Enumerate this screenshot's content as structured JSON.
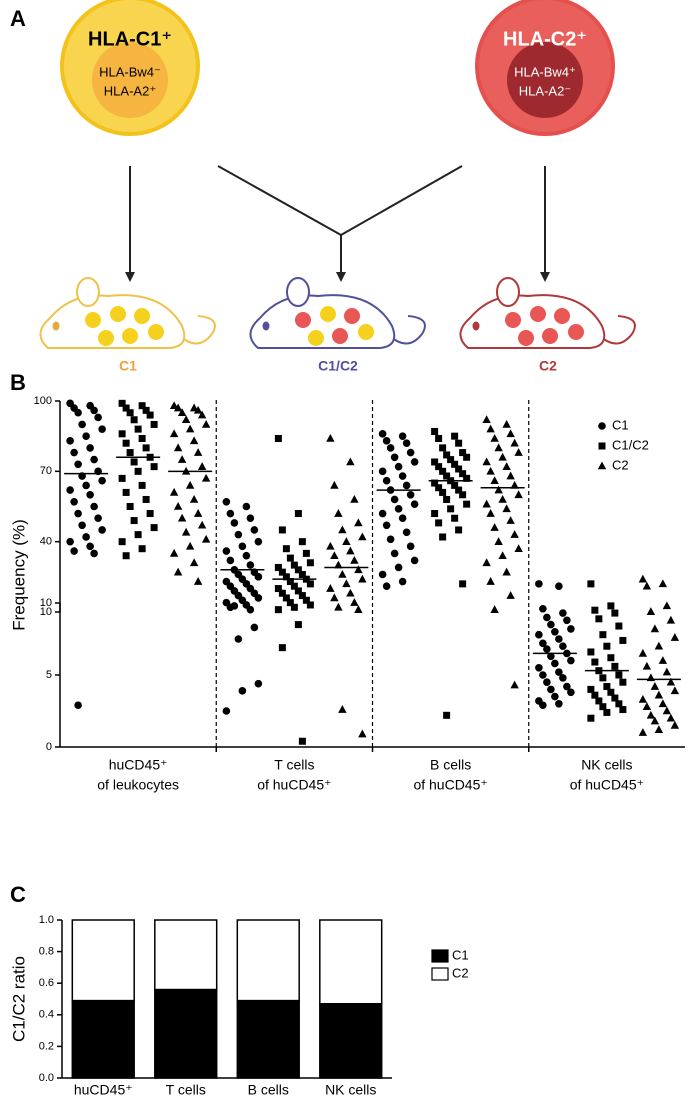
{
  "panel_a": {
    "label": "A",
    "donors": [
      {
        "title": "HLA-C1⁺",
        "lines": [
          "HLA-Bw4⁻",
          "HLA-A2⁺"
        ]
      },
      {
        "title": "HLA-C2⁺",
        "lines": [
          "HLA-Bw4⁺",
          "HLA-A2⁻"
        ]
      }
    ],
    "mice": [
      "C1",
      "C1/C2",
      "C2"
    ]
  },
  "chart_data": [
    {
      "type": "strip",
      "panel_label": "B",
      "ylabel": "Frequency (%)",
      "categories": [
        [
          "huCD45⁺",
          "of leukocytes"
        ],
        [
          "T cells",
          "of huCD45⁺"
        ],
        [
          "B cells",
          "of huCD45⁺"
        ],
        [
          "NK cells",
          "of huCD45⁺"
        ]
      ],
      "axis_segments": [
        {
          "ylim": [
            0,
            10
          ],
          "yticks": [
            0,
            5,
            10
          ]
        },
        {
          "ylim": [
            10,
            100
          ],
          "yticks": [
            10,
            40,
            70,
            100
          ]
        }
      ],
      "legend": "top-right",
      "series": [
        {
          "name": "C1",
          "marker": "circle",
          "color": "#000000",
          "values": [
            [
              99,
              98,
              97,
              96,
              95,
              93,
              90,
              88,
              85,
              83,
              80,
              78,
              75,
              73,
              70,
              68,
              66,
              64,
              62,
              60,
              57,
              55,
              52,
              50,
              47,
              45,
              42,
              40,
              38,
              36,
              35,
              2.9
            ],
            [
              57,
              55,
              52,
              50,
              48,
              45,
              43,
              40,
              38,
              36,
              34,
              32,
              30,
              28,
              27,
              26,
              25,
              24,
              23,
              22,
              21,
              20,
              19,
              18,
              17,
              16,
              15,
              14,
              13,
              12,
              11,
              9.8,
              8.3,
              7.5,
              4.4,
              3.9,
              2.5
            ],
            [
              86,
              85,
              83,
              82,
              80,
              78,
              76,
              74,
              72,
              70,
              68,
              66,
              64,
              62,
              60,
              58,
              56,
              54,
              52,
              50,
              47,
              44,
              41,
              38,
              35,
              32,
              29,
              26,
              23,
              21
            ],
            [
              22,
              21,
              9.6,
              9.3,
              9.0,
              8.8,
              8.5,
              8.2,
              8.0,
              7.8,
              7.5,
              7.2,
              7.0,
              6.8,
              6.5,
              6.3,
              6.0,
              5.8,
              5.5,
              5.2,
              5.0,
              4.8,
              4.5,
              4.2,
              4.0,
              3.8,
              3.5,
              3.2,
              3.0,
              2.9
            ]
          ],
          "means": [
            69,
            28,
            62,
            6.5
          ]
        },
        {
          "name": "C1/C2",
          "marker": "square",
          "color": "#000000",
          "values": [
            [
              99,
              98,
              97,
              96,
              95,
              94,
              92,
              90,
              88,
              86,
              84,
              82,
              80,
              78,
              76,
              74,
              72,
              70,
              67,
              64,
              61,
              58,
              55,
              52,
              49,
              46,
              43,
              40,
              37,
              34
            ],
            [
              84,
              52,
              45,
              40,
              37,
              35,
              33,
              31,
              30,
              29,
              28,
              27,
              26,
              25,
              24,
              23,
              22,
              21,
              20,
              19,
              18,
              17,
              16,
              15,
              14,
              13,
              12,
              11,
              8.5,
              6.9,
              0.4
            ],
            [
              87,
              85,
              84,
              82,
              80,
              78,
              77,
              76,
              75,
              74,
              73,
              72,
              71,
              70,
              69,
              68,
              67,
              66,
              65,
              64,
              63,
              62,
              61,
              60,
              58,
              56,
              54,
              52,
              50,
              48,
              45,
              42,
              22,
              2.2
            ],
            [
              22,
              9.8,
              9.5,
              9.3,
              8.9,
              8.4,
              7.8,
              7.4,
              7.0,
              6.6,
              6.2,
              5.9,
              5.6,
              5.3,
              5.0,
              4.8,
              4.5,
              4.2,
              4.0,
              3.8,
              3.6,
              3.4,
              3.2,
              3.0,
              2.8,
              2.6,
              2.4,
              2.0
            ]
          ],
          "means": [
            76,
            24,
            66,
            5.3
          ]
        },
        {
          "name": "C2",
          "marker": "triangle",
          "color": "#000000",
          "values": [
            [
              98,
              97,
              97,
              96,
              95,
              94,
              92,
              90,
              88,
              86,
              83,
              80,
              78,
              75,
              72,
              70,
              67,
              64,
              61,
              58,
              55,
              52,
              50,
              47,
              44,
              41,
              38,
              35,
              31,
              27,
              23
            ],
            [
              84,
              74,
              64,
              58,
              52,
              48,
              45,
              42,
              40,
              38,
              36,
              34,
              32,
              30,
              28,
              26,
              24,
              22,
              20,
              18,
              16,
              14,
              12,
              11,
              2.6,
              0.9
            ],
            [
              92,
              90,
              88,
              86,
              84,
              82,
              80,
              78,
              76,
              74,
              72,
              70,
              68,
              66,
              64,
              62,
              60,
              58,
              56,
              54,
              52,
              49,
              46,
              43,
              40,
              37,
              34,
              31,
              27,
              23,
              17,
              11,
              4.3
            ],
            [
              24,
              22,
              21,
              9.8,
              9.4,
              8.8,
              8.2,
              7.6,
              7.0,
              6.5,
              6.0,
              5.6,
              5.2,
              4.8,
              4.5,
              4.2,
              3.9,
              3.6,
              3.3,
              3.0,
              2.8,
              2.5,
              2.2,
              2.0,
              1.8,
              1.5,
              1.2,
              1.0
            ]
          ],
          "means": [
            70,
            29,
            63,
            4.7
          ]
        }
      ]
    },
    {
      "type": "stacked_bar",
      "panel_label": "C",
      "ylabel": "C1/C2 ratio",
      "categories": [
        "huCD45⁺",
        "T cells",
        "B cells",
        "NK cells"
      ],
      "ylim": [
        0,
        1
      ],
      "yticks": [
        {
          "value": 0,
          "label": "0.0"
        },
        {
          "value": 0.2,
          "label": "0.2"
        },
        {
          "value": 0.4,
          "label": "0.4"
        },
        {
          "value": 0.6,
          "label": "0.6"
        },
        {
          "value": 0.8,
          "label": "0.8"
        },
        {
          "value": 1,
          "label": "1.0"
        }
      ],
      "legend": "right",
      "series": [
        {
          "name": "C1",
          "color": "#000000",
          "values": [
            0.49,
            0.56,
            0.49,
            0.47
          ]
        },
        {
          "name": "C2",
          "color": "#ffffff",
          "values": [
            0.51,
            0.44,
            0.51,
            0.53
          ]
        }
      ]
    }
  ]
}
